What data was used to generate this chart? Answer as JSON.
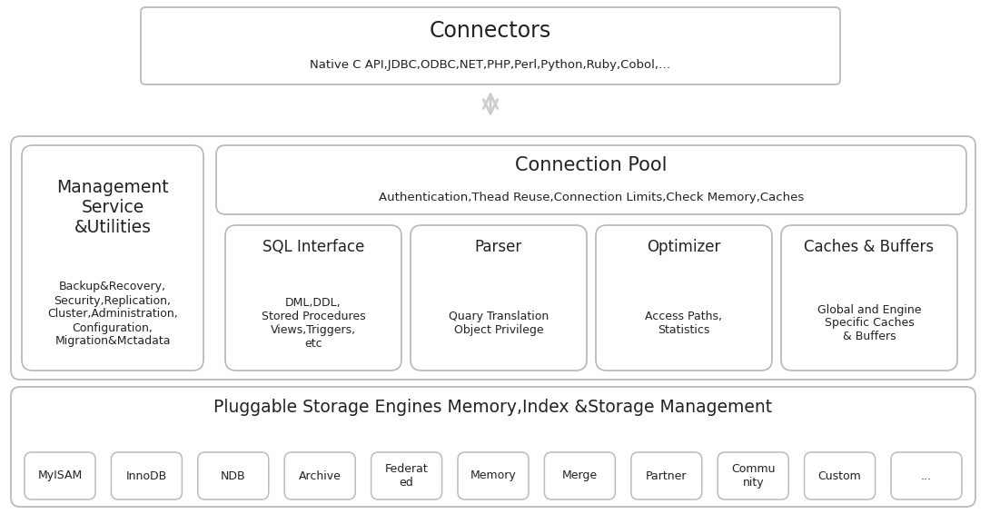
{
  "bg_color": "#ffffff",
  "border_color": "#bbbbbb",
  "text_color": "#222222",
  "connectors_title": "Connectors",
  "connectors_subtitle": "Native C API,JDBC,ODBC,NET,PHP,Perl,Python,Ruby,Cobol,…",
  "mgmt_title": "Management\nService\n&Utilities",
  "mgmt_body": "Backup&Recovery,\nSecurity,Replication,\nCluster,Administration,\nConfiguration,\nMigration&Mctadata",
  "conn_pool_title": "Connection Pool",
  "conn_pool_body": "Authentication,Thead Reuse,Connection Limits,Check Memory,Caches",
  "sql_title": "SQL Interface",
  "sql_body": "DML,DDL,\nStored Procedures\nViews,Triggers,\netc",
  "parser_title": "Parser",
  "parser_body": "Quary Translation\nObject Privilege",
  "optimizer_title": "Optimizer",
  "optimizer_body": "Access Paths,\nStatistics",
  "caches_title": "Caches & Buffers",
  "caches_body": "Global and Engine\nSpecific Caches\n& Buffers",
  "storage_title": "Pluggable Storage Engines Memory,Index &Storage Management",
  "engines": [
    "MyISAM",
    "InnoDB",
    "NDB",
    "Archive",
    "Federat\ned",
    "Memory",
    "Merge",
    "Partner",
    "Commu\nnity",
    "Custom",
    "..."
  ]
}
